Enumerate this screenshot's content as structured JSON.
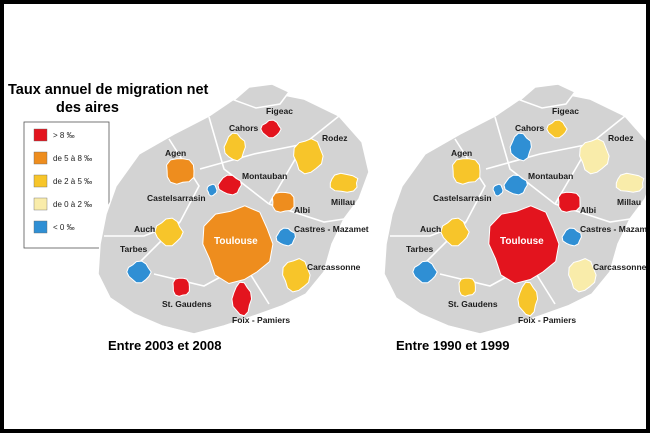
{
  "title": {
    "line1": "Taux annuel de migration net",
    "line2": "des aires"
  },
  "legend": [
    {
      "label": "> 8 ‰",
      "color": "#e3141e"
    },
    {
      "label": "de 5 à 8 ‰",
      "color": "#ee8d1e"
    },
    {
      "label": "de 2 à 5 ‰",
      "color": "#f7c52a"
    },
    {
      "label": "de 0 à 2 ‰",
      "color": "#f9ecaa"
    },
    {
      "label": "< 0 ‰",
      "color": "#2f8fd4"
    }
  ],
  "colors": {
    "region": "#d3d3d3",
    "border": "#ffffff"
  },
  "maps": [
    {
      "caption": "Entre 2003 et 2008",
      "areas": {
        "Figeac": "#e3141e",
        "Cahors": "#f7c52a",
        "Rodez": "#f7c52a",
        "Agen": "#ee8d1e",
        "Montauban": "#e3141e",
        "Castelsarrasin": "#2f8fd4",
        "Millau": "#f7c52a",
        "Albi": "#ee8d1e",
        "Auch": "#f7c52a",
        "Castres - Mazamet": "#2f8fd4",
        "Toulouse": "#ee8d1e",
        "Tarbes": "#2f8fd4",
        "Carcassonne": "#f7c52a",
        "St. Gaudens": "#e3141e",
        "Foix - Pamiers": "#e3141e"
      }
    },
    {
      "caption": "Entre 1990 et 1999",
      "areas": {
        "Figeac": "#f7c52a",
        "Cahors": "#2f8fd4",
        "Rodez": "#f9ecaa",
        "Agen": "#f7c52a",
        "Montauban": "#2f8fd4",
        "Castelsarrasin": "#2f8fd4",
        "Millau": "#f9ecaa",
        "Albi": "#e3141e",
        "Auch": "#f7c52a",
        "Castres - Mazamet": "#2f8fd4",
        "Toulouse": "#e3141e",
        "Tarbes": "#2f8fd4",
        "Carcassonne": "#f9ecaa",
        "St. Gaudens": "#f7c52a",
        "Foix - Pamiers": "#f7c52a"
      }
    }
  ]
}
